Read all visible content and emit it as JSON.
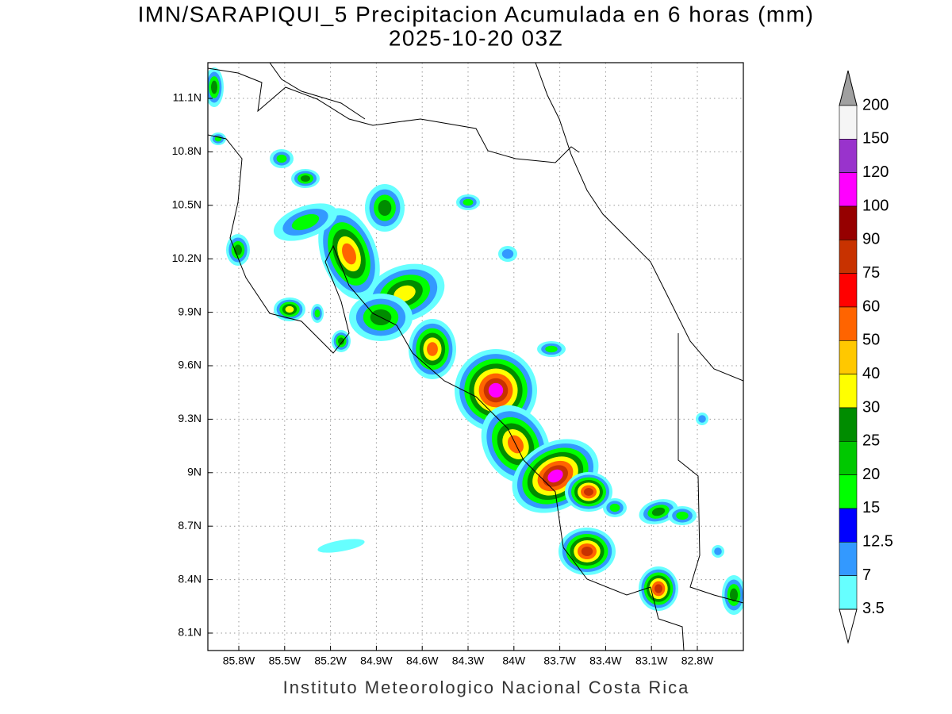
{
  "title": "IMN/SARAPIQUI_5 Precipitacion Acumulada en 6 horas (mm)",
  "subtitle": "2025-10-20 03Z",
  "credit": "Instituto Meteorologico Nacional Costa Rica",
  "map": {
    "lon_labels": [
      "85.8W",
      "85.5W",
      "85.2W",
      "84.9W",
      "84.6W",
      "84.3W",
      "84W",
      "83.7W",
      "83.4W",
      "83.1W",
      "82.8W"
    ],
    "lat_labels": [
      "11.1N",
      "10.8N",
      "10.5N",
      "10.2N",
      "9.9N",
      "9.6N",
      "9.3N",
      "9N",
      "8.7N",
      "8.4N",
      "8.1N"
    ],
    "grid": true
  },
  "colorbar": {
    "labels": [
      "200",
      "150",
      "120",
      "100",
      "90",
      "75",
      "60",
      "50",
      "40",
      "30",
      "25",
      "20",
      "15",
      "12.5",
      "7",
      "3.5"
    ],
    "colors": [
      "#f5f5f5",
      "#9933cc",
      "#ff00ff",
      "#960000",
      "#c83200",
      "#ff0000",
      "#ff6400",
      "#ffc800",
      "#ffff00",
      "#008c00",
      "#00c800",
      "#00ff00",
      "#0000ff",
      "#3399ff",
      "#66ffff"
    ],
    "over_color": "#a0a0a0",
    "under_color": "#ffffff"
  }
}
